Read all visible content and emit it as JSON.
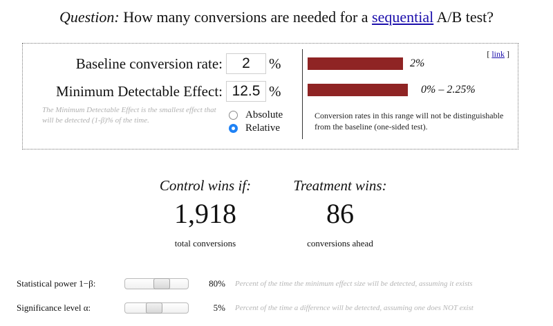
{
  "header": {
    "question_word": "Question:",
    "question_text_before": " How many conversions are needed for a ",
    "question_link": "sequential",
    "question_text_after": " A/B test?"
  },
  "calculator": {
    "baseline": {
      "label": "Baseline conversion rate:",
      "value": "2",
      "unit": "%"
    },
    "mde": {
      "label": "Minimum Detectable Effect:",
      "value": "12.5",
      "unit": "%",
      "note": "The Minimum Detectable Effect is the smallest effect that will be detected (1-β)% of the time."
    },
    "mode_options": [
      {
        "label": "Absolute",
        "selected": false
      },
      {
        "label": "Relative",
        "selected": true
      }
    ],
    "link_text": "link",
    "bars": {
      "baseline_label": "2%",
      "range_label": "0% – 2.25%",
      "color": "#8f2424"
    },
    "range_note": "Conversion rates in this range will not be distinguishable from the baseline (one-sided test)."
  },
  "results": {
    "control": {
      "heading": "Control wins if:",
      "value": "1,918",
      "caption": "total conversions"
    },
    "treatment": {
      "heading": "Treatment wins:",
      "value": "86",
      "caption": "conversions ahead"
    }
  },
  "settings": {
    "power": {
      "label": "Statistical power 1−β:",
      "value": "80%",
      "level": 0.8,
      "description": "Percent of the time the minimum effect size will be detected, assuming it exists"
    },
    "significance": {
      "label": "Significance level α:",
      "value": "5%",
      "level": 0.05,
      "description": "Percent of the time a difference will be detected, assuming one does NOT exist"
    }
  },
  "colors": {
    "bar": "#8f2424",
    "link": "#1a0dab",
    "radio_selected": "#1f82f5",
    "muted_text": "#b0b0b0"
  }
}
